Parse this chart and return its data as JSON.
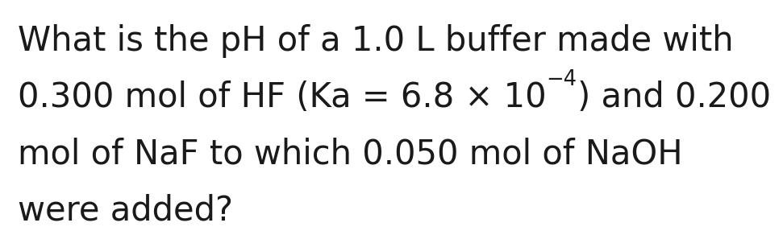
{
  "background_color": "#ffffff",
  "text_color": "#1a1a1a",
  "font_size": 30,
  "font_family": "DejaVu Sans",
  "line1": "What is the pH of a 1.0 L buffer made with",
  "line2_part1": "0.300 mol of HF (Ka = 6.8 × 10",
  "line2_superscript": "−4",
  "line2_part2": ") and 0.200",
  "line3": "mol of NaF to which 0.050 mol of NaOH",
  "line4": "were added?"
}
